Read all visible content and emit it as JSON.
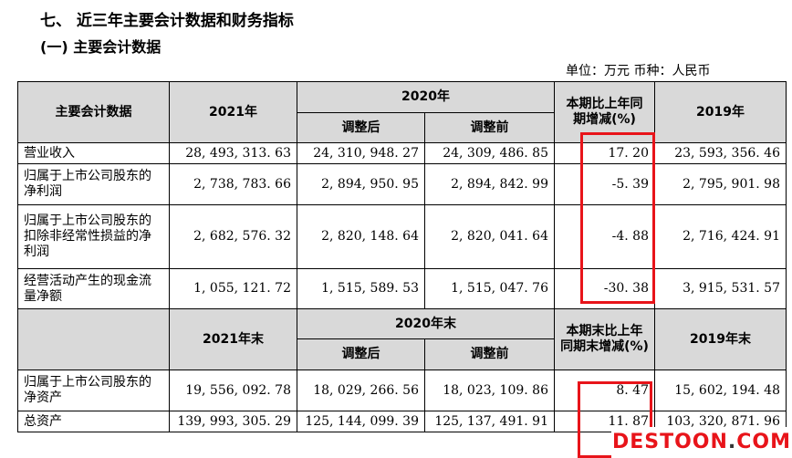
{
  "title": "七、  近三年主要会计数据和财务指标",
  "subtitle": "(一) 主要会计数据",
  "unit_note": "单位：万元   币种：人民币",
  "table1": {
    "header": {
      "col0": "主要会计数据",
      "col1": "2021年",
      "col2_group": "2020年",
      "col2a": "调整后",
      "col2b": "调整前",
      "col3": "本期比上年同期增减(%)",
      "col4": "2019年"
    },
    "rows": [
      {
        "label": "营业收入",
        "v2021": "28, 493, 313. 63",
        "adj": "24, 310, 948. 27",
        "pre": "24, 309, 486. 85",
        "chg": "17. 20",
        "v2019": "23, 593, 356. 46"
      },
      {
        "label": "归属于上市公司股东的净利润",
        "v2021": "2, 738, 783. 66",
        "adj": "2, 894, 950. 95",
        "pre": "2, 894, 842. 99",
        "chg": "-5. 39",
        "v2019": "2, 795, 901. 98"
      },
      {
        "label": "归属于上市公司股东的扣除非经常性损益的净利润",
        "v2021": "2, 682, 576. 32",
        "adj": "2, 820, 148. 64",
        "pre": "2, 820, 041. 64",
        "chg": "-4. 88",
        "v2019": "2, 716, 424. 91"
      },
      {
        "label": "经营活动产生的现金流量净额",
        "v2021": "1, 055, 121. 72",
        "adj": "1, 515, 589. 53",
        "pre": "1, 515, 047. 76",
        "chg": "-30. 38",
        "v2019": "3, 915, 531. 57"
      }
    ]
  },
  "table2": {
    "header": {
      "col1": "2021年末",
      "col2_group": "2020年末",
      "col2a": "调整后",
      "col2b": "调整前",
      "col3": "本期末比上年同期末增减(%)",
      "col4": "2019年末"
    },
    "rows": [
      {
        "label": "归属于上市公司股东的净资产",
        "v2021": "19, 556, 092. 78",
        "adj": "18, 029, 266. 56",
        "pre": "18, 023, 109. 86",
        "chg": "8. 47",
        "v2019": "15, 602, 194. 48"
      },
      {
        "label": "总资产",
        "v2021": "139, 993, 305. 29",
        "adj": "125, 144, 099. 39",
        "pre": "125, 137, 491. 91",
        "chg": "11. 87",
        "v2019": "103, 320, 871. 96"
      }
    ]
  },
  "watermark": {
    "main": "DESTOON",
    "dot": ".",
    "tld": "COM"
  },
  "colors": {
    "highlight_box": "#e8141a",
    "header_shade": "#d9d9d9"
  }
}
